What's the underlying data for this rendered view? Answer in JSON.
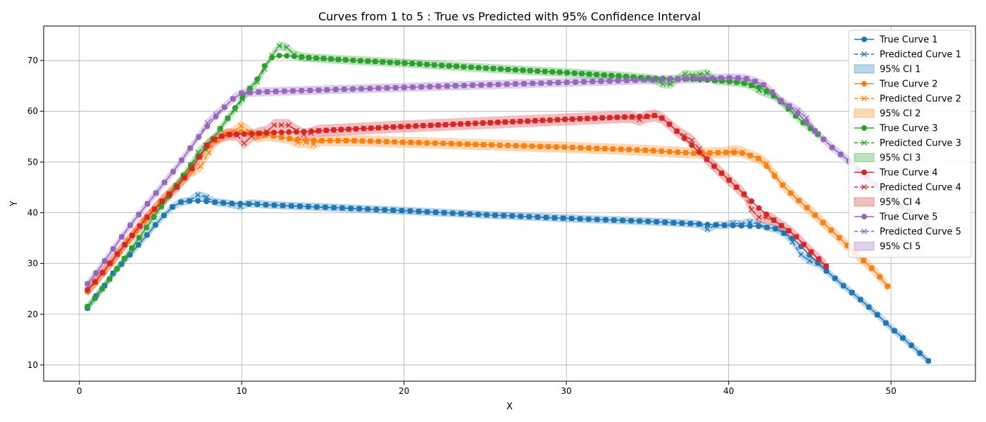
{
  "chart_data": {
    "type": "line",
    "title": "Curves from 1 to 5 : True vs Predicted with 95% Confidence Interval",
    "xlabel": "X",
    "ylabel": "Y",
    "xlim": [
      -2.2,
      55.2
    ],
    "ylim": [
      6.8,
      76.8
    ],
    "xticks": [
      0,
      10,
      20,
      30,
      40,
      50
    ],
    "yticks": [
      10,
      20,
      30,
      40,
      50,
      60,
      70
    ],
    "grid": true,
    "legend_position": "top-right",
    "series": [
      {
        "index": 1,
        "true_name": "True Curve 1",
        "pred_name": "Predicted Curve 1",
        "ci_name": "95% CI 1",
        "color": "#1f77b4",
        "x_start": 0.5,
        "x_end": 52.3,
        "knots": [
          [
            0.5,
            21.2
          ],
          [
            1.0,
            23.5
          ],
          [
            1.5,
            25.4
          ],
          [
            2.0,
            27.8
          ],
          [
            3.0,
            31.3
          ],
          [
            4.0,
            35.0
          ],
          [
            5.0,
            38.8
          ],
          [
            6.0,
            42.0
          ],
          [
            7.0,
            42.4
          ],
          [
            8.0,
            42.2
          ],
          [
            9.0,
            41.9
          ],
          [
            10.0,
            41.8
          ],
          [
            12.0,
            41.5
          ],
          [
            15.0,
            41.1
          ],
          [
            20.0,
            40.4
          ],
          [
            25.0,
            39.6
          ],
          [
            30.0,
            38.9
          ],
          [
            35.0,
            38.3
          ],
          [
            38.0,
            37.8
          ],
          [
            40.0,
            37.5
          ],
          [
            42.0,
            37.3
          ],
          [
            43.0,
            36.8
          ],
          [
            44.0,
            34.8
          ],
          [
            45.0,
            31.6
          ],
          [
            46.0,
            28.6
          ],
          [
            47.0,
            25.8
          ],
          [
            48.0,
            23.2
          ],
          [
            49.0,
            20.4
          ],
          [
            50.0,
            17.3
          ],
          [
            51.0,
            14.6
          ],
          [
            52.3,
            10.8
          ]
        ],
        "pred_adj": [
          [
            7.3,
            1.1
          ],
          [
            7.8,
            0.8
          ],
          [
            9.8,
            -0.7
          ],
          [
            10.7,
            0.2
          ],
          [
            38.7,
            -0.9
          ],
          [
            40.5,
            0.8
          ],
          [
            41.5,
            1.2
          ],
          [
            44.3,
            -2.2
          ],
          [
            45.0,
            -1.2
          ]
        ],
        "ci_half": 0.8
      },
      {
        "index": 2,
        "true_name": "True Curve 2",
        "pred_name": "Predicted Curve 2",
        "ci_name": "95% CI 2",
        "color": "#ff7f0e",
        "x_start": 0.5,
        "x_end": 49.8,
        "knots": [
          [
            0.5,
            24.5
          ],
          [
            1.0,
            26.3
          ],
          [
            2.0,
            30.3
          ],
          [
            3.0,
            34.5
          ],
          [
            4.0,
            38.5
          ],
          [
            5.0,
            42.2
          ],
          [
            6.0,
            45.5
          ],
          [
            7.0,
            49.5
          ],
          [
            8.0,
            53.3
          ],
          [
            9.0,
            55.5
          ],
          [
            10.0,
            56.0
          ],
          [
            11.0,
            55.6
          ],
          [
            12.0,
            55.1
          ],
          [
            13.0,
            54.6
          ],
          [
            14.0,
            54.3
          ],
          [
            15.0,
            54.2
          ],
          [
            17.0,
            54.2
          ],
          [
            20.0,
            53.9
          ],
          [
            25.0,
            53.4
          ],
          [
            30.0,
            52.9
          ],
          [
            35.0,
            52.3
          ],
          [
            38.0,
            51.7
          ],
          [
            40.0,
            51.9
          ],
          [
            41.0,
            51.7
          ],
          [
            42.0,
            50.5
          ],
          [
            43.0,
            46.5
          ],
          [
            44.0,
            43.3
          ],
          [
            45.0,
            40.5
          ],
          [
            46.0,
            37.5
          ],
          [
            47.0,
            34.5
          ],
          [
            48.0,
            31.5
          ],
          [
            49.0,
            28.5
          ],
          [
            49.8,
            25.5
          ]
        ],
        "pred_adj": [
          [
            6.8,
            -1.8
          ],
          [
            7.5,
            -2.0
          ],
          [
            7.9,
            -1.2
          ],
          [
            10.0,
            1.2
          ],
          [
            11.0,
            -0.8
          ],
          [
            13.5,
            -0.7
          ],
          [
            14.3,
            -1.0
          ],
          [
            40.5,
            0.6
          ],
          [
            42.5,
            0.8
          ]
        ],
        "ci_half": 1.1
      },
      {
        "index": 3,
        "true_name": "True Curve 3",
        "pred_name": "Predicted Curve 3",
        "ci_name": "95% CI 3",
        "color": "#2ca02c",
        "x_start": 0.5,
        "x_end": 45.5,
        "knots": [
          [
            0.5,
            21.5
          ],
          [
            1.0,
            23.3
          ],
          [
            2.0,
            27.5
          ],
          [
            3.0,
            32.0
          ],
          [
            4.0,
            36.5
          ],
          [
            5.0,
            41.0
          ],
          [
            6.0,
            45.5
          ],
          [
            7.0,
            50.0
          ],
          [
            8.0,
            53.5
          ],
          [
            9.0,
            58.0
          ],
          [
            10.0,
            62.5
          ],
          [
            11.0,
            66.5
          ],
          [
            11.5,
            69.5
          ],
          [
            12.0,
            71.0
          ],
          [
            13.0,
            70.9
          ],
          [
            14.0,
            70.6
          ],
          [
            16.0,
            70.2
          ],
          [
            20.0,
            69.5
          ],
          [
            25.0,
            68.5
          ],
          [
            30.0,
            67.6
          ],
          [
            33.0,
            67.0
          ],
          [
            35.0,
            66.5
          ],
          [
            38.0,
            66.3
          ],
          [
            40.0,
            65.9
          ],
          [
            41.0,
            65.5
          ],
          [
            42.0,
            64.6
          ],
          [
            43.0,
            62.6
          ],
          [
            44.0,
            59.5
          ],
          [
            44.5,
            58.0
          ],
          [
            45.5,
            55.5
          ]
        ],
        "pred_adj": [
          [
            7.5,
            1.2
          ],
          [
            9.8,
            -0.6
          ],
          [
            11.2,
            -1.0
          ],
          [
            12.3,
            1.8
          ],
          [
            12.8,
            1.5
          ],
          [
            35.8,
            -0.8
          ],
          [
            36.3,
            -1.3
          ],
          [
            37.5,
            1.5
          ],
          [
            38.5,
            2.0
          ],
          [
            42.0,
            -0.8
          ]
        ],
        "ci_half": 0.9
      },
      {
        "index": 4,
        "true_name": "True Curve 4",
        "pred_name": "Predicted Curve 4",
        "ci_name": "95% CI 4",
        "color": "#d62728",
        "x_start": 0.5,
        "x_end": 46.0,
        "knots": [
          [
            0.5,
            24.8
          ],
          [
            1.0,
            26.5
          ],
          [
            2.0,
            30.5
          ],
          [
            3.0,
            34.5
          ],
          [
            4.0,
            38.5
          ],
          [
            5.0,
            42.0
          ],
          [
            6.0,
            45.0
          ],
          [
            7.0,
            49.0
          ],
          [
            8.0,
            54.0
          ],
          [
            9.0,
            55.4
          ],
          [
            10.0,
            55.5
          ],
          [
            12.0,
            55.8
          ],
          [
            14.0,
            56.0
          ],
          [
            15.0,
            56.2
          ],
          [
            20.0,
            57.0
          ],
          [
            25.0,
            57.7
          ],
          [
            30.0,
            58.4
          ],
          [
            33.0,
            58.8
          ],
          [
            35.0,
            59.0
          ],
          [
            35.5,
            59.2
          ],
          [
            36.0,
            58.5
          ],
          [
            37.0,
            55.5
          ],
          [
            38.0,
            52.5
          ],
          [
            39.0,
            49.5
          ],
          [
            40.0,
            46.5
          ],
          [
            41.0,
            43.5
          ],
          [
            42.0,
            40.5
          ],
          [
            43.0,
            38.0
          ],
          [
            44.0,
            35.8
          ],
          [
            45.0,
            32.5
          ],
          [
            46.0,
            29.5
          ]
        ],
        "pred_adj": [
          [
            10.2,
            -2.0
          ],
          [
            12.0,
            1.5
          ],
          [
            12.6,
            1.6
          ],
          [
            13.0,
            0.8
          ],
          [
            14.0,
            -0.8
          ],
          [
            34.5,
            -0.6
          ],
          [
            37.5,
            0.8
          ],
          [
            38.0,
            1.0
          ],
          [
            41.5,
            -2.0
          ],
          [
            42.0,
            -1.5
          ]
        ],
        "ci_half": 1.2
      },
      {
        "index": 5,
        "true_name": "True Curve 5",
        "pred_name": "Predicted Curve 5",
        "ci_name": "95% CI 5",
        "color": "#9467bd",
        "x_start": 0.5,
        "x_end": 52.7,
        "knots": [
          [
            0.5,
            26.0
          ],
          [
            1.0,
            28.0
          ],
          [
            2.0,
            32.5
          ],
          [
            3.0,
            37.0
          ],
          [
            4.0,
            41.0
          ],
          [
            5.0,
            45.0
          ],
          [
            6.0,
            49.0
          ],
          [
            7.0,
            53.5
          ],
          [
            8.0,
            57.5
          ],
          [
            9.0,
            61.0
          ],
          [
            9.8,
            63.5
          ],
          [
            11.0,
            63.8
          ],
          [
            13.0,
            64.0
          ],
          [
            15.0,
            64.2
          ],
          [
            20.0,
            64.7
          ],
          [
            25.0,
            65.2
          ],
          [
            30.0,
            65.7
          ],
          [
            35.0,
            66.2
          ],
          [
            38.0,
            66.4
          ],
          [
            40.0,
            66.6
          ],
          [
            41.0,
            66.5
          ],
          [
            42.0,
            65.5
          ],
          [
            42.5,
            64.5
          ],
          [
            43.0,
            62.5
          ],
          [
            44.0,
            60.5
          ],
          [
            44.5,
            58.8
          ],
          [
            45.5,
            55.5
          ],
          [
            46.5,
            52.5
          ],
          [
            47.5,
            50.0
          ],
          [
            48.5,
            47.0
          ],
          [
            49.5,
            44.0
          ],
          [
            50.5,
            41.5
          ],
          [
            51.5,
            39.5
          ],
          [
            52.7,
            36.5
          ]
        ],
        "pred_adj": [
          [
            7.8,
            0.8
          ],
          [
            8.5,
            0.5
          ],
          [
            44.3,
            0.6
          ],
          [
            44.8,
            0.8
          ]
        ],
        "ci_half": 0.9
      }
    ]
  }
}
